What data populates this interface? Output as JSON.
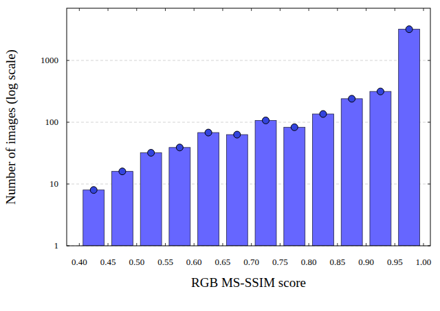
{
  "chart_data": {
    "type": "bar",
    "x_label": "RGB MS-SSIM score",
    "y_label": "Number of images (log scale)",
    "x": [
      0.425,
      0.475,
      0.525,
      0.575,
      0.625,
      0.675,
      0.725,
      0.775,
      0.825,
      0.875,
      0.925,
      0.975
    ],
    "values": [
      8,
      16,
      32,
      39,
      68,
      63,
      107,
      83,
      136,
      240,
      315,
      3200
    ],
    "color": "#6666ff",
    "marker": "circle",
    "log": "y",
    "grid": true,
    "xlim": [
      0.378,
      1.012
    ],
    "xticks": [
      {
        "value": 0.4,
        "label": "0.40"
      },
      0.45,
      {
        "value": 0.5,
        "label": "0.50"
      },
      0.55,
      {
        "value": 0.6,
        "label": "0.60"
      },
      0.65,
      {
        "value": 0.7,
        "label": "0.70"
      },
      0.75,
      {
        "value": 0.8,
        "label": "0.80"
      },
      0.85,
      {
        "value": 0.9,
        "label": "0.90"
      },
      0.95,
      {
        "value": 1,
        "label": "1.00"
      }
    ],
    "ylim": [
      1,
      7000
    ],
    "yticks": [
      1,
      10,
      100,
      1000
    ]
  }
}
